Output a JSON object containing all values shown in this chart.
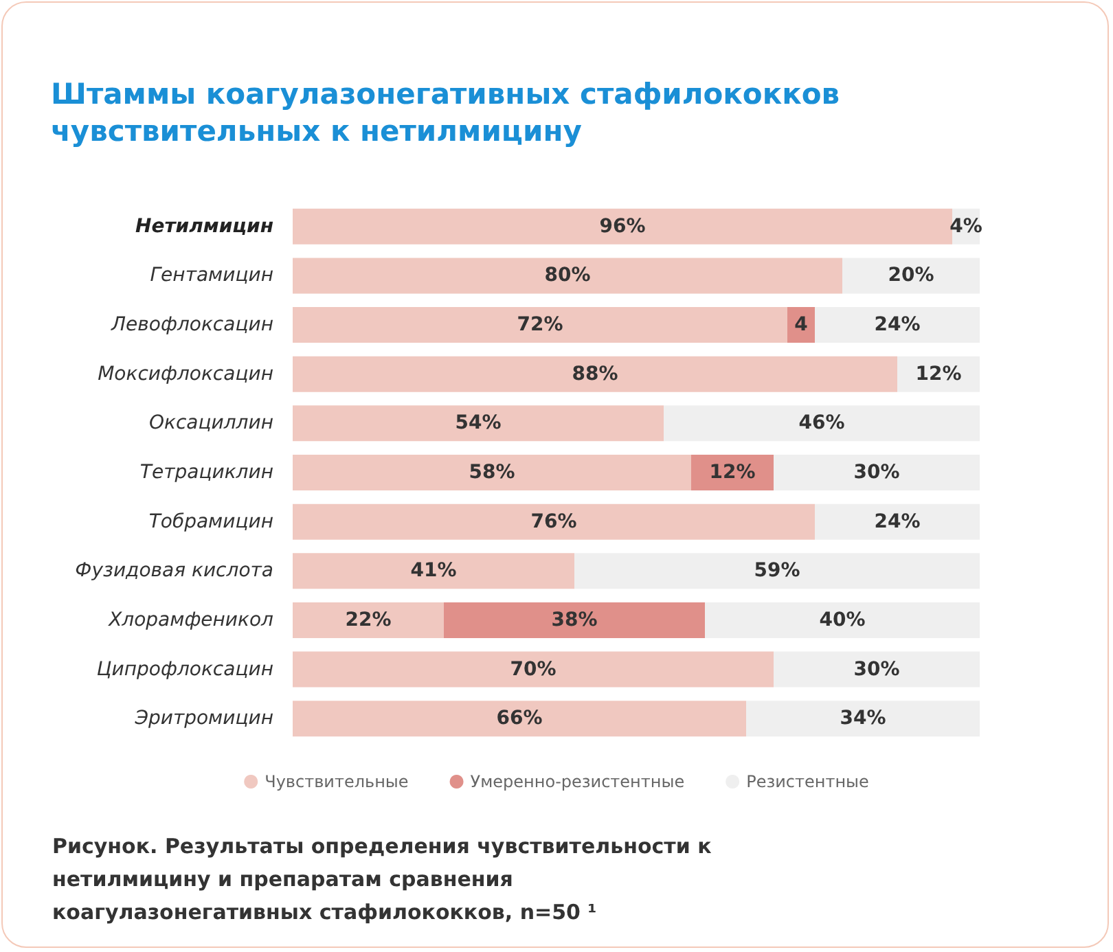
{
  "chart_data": {
    "type": "bar",
    "orientation": "horizontal",
    "stacked": true,
    "title": "Штаммы коагулазонегативных стафилококков\nчувствительных к нетилмицину",
    "categories": [
      "Нетилмицин",
      "Гентамицин",
      "Левофлоксацин",
      "Моксифлоксацин",
      "Оксациллин",
      "Тетрациклин",
      "Тобрамицин",
      "Фузидовая кислота",
      "Хлорамфеникол",
      "Ципрофлоксацин",
      "Эритромицин"
    ],
    "series": [
      {
        "name": "Чувствительные",
        "color": "#f0c8c0",
        "values": [
          96,
          80,
          72,
          88,
          54,
          58,
          76,
          41,
          22,
          70,
          66
        ],
        "value_labels": [
          "96%",
          "80%",
          "72%",
          "88%",
          "54%",
          "58%",
          "76%",
          "41%",
          "22%",
          "70%",
          "66%"
        ]
      },
      {
        "name": "Умеренно-резистентные",
        "color": "#e0908a",
        "values": [
          null,
          null,
          4,
          null,
          null,
          12,
          null,
          null,
          38,
          null,
          null
        ],
        "value_labels": [
          null,
          null,
          "4",
          null,
          null,
          "12%",
          null,
          null,
          "38%",
          null,
          null
        ]
      },
      {
        "name": "Резистентные",
        "color": "#efefef",
        "values": [
          4,
          20,
          24,
          12,
          46,
          30,
          24,
          59,
          40,
          30,
          34
        ],
        "value_labels": [
          "4%",
          "20%",
          "24%",
          "12%",
          "46%",
          "30%",
          "24%",
          "59%",
          "40%",
          "30%",
          "34%"
        ]
      }
    ],
    "xlim": [
      0,
      100
    ],
    "tick_labels": "y",
    "grid": false,
    "legend": "bottom",
    "annotations": [
      "Рисунок. Результаты определения чувствительности к нетилмицину и препаратам сравнения коагулазонегативных стафилококков, n=50 ¹"
    ]
  }
}
